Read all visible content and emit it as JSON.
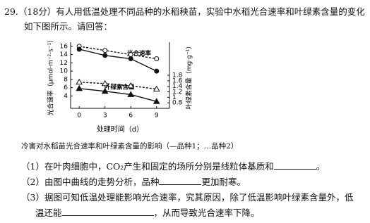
{
  "question": {
    "stem": [
      "29.（18分）有人用低温处理不同品种的水稻秧苗，实验中水稻光合速率和叶绿素含量的变化",
      "如下图所示。请回答："
    ],
    "chart_data": {
      "type": "line",
      "y_label": "光合速率（μmol·m⁻²·s⁻¹）",
      "y2_label": "叶绿素含量（mg·g⁻¹）",
      "x_label": "处理时间（d）",
      "x": [
        0,
        3,
        6,
        9
      ],
      "xlim": [
        -1,
        10.5
      ],
      "xticks": [
        0,
        3,
        6,
        9
      ],
      "ylim": [
        1,
        17
      ],
      "yticks": [
        4,
        6,
        8,
        10,
        12,
        14,
        16
      ],
      "y2lim": [
        0.6,
        3.0
      ],
      "y2ticks": [
        0.8,
        1.0,
        1.2,
        1.4,
        1.6,
        1.8
      ],
      "annotations": [
        "光合速率",
        "叶绿素含量"
      ],
      "series": [
        {
          "color": "#111",
          "marker": "circle",
          "filled": false,
          "dashed": true,
          "values": [
            16,
            15,
            14,
            13
          ]
        },
        {
          "color": "#111",
          "marker": "circle",
          "filled": true,
          "dashed": false,
          "values": [
            15.3,
            13.8,
            13,
            10
          ]
        },
        {
          "axis": "y2",
          "color": "#111",
          "marker": "triangle",
          "filled": false,
          "dashed": true,
          "values": [
            1.55,
            1.5,
            1.42,
            1.3
          ]
        },
        {
          "axis": "y2",
          "color": "#111",
          "marker": "triangle",
          "filled": true,
          "dashed": false,
          "values": [
            1.32,
            1.22,
            1.1,
            0.85
          ]
        }
      ]
    },
    "caption": "冷害对水稻苗光合速率和叶绿素含量的影响（—品种1；…品种2）",
    "items": [
      {
        "label": "（1）",
        "lines": [
          "在叶肉细胞中，CO₂产生和固定的场所分别是线粒体基质和"
        ],
        "after": "。"
      },
      {
        "label": "（2）",
        "lines": [
          "由图中曲线的走势分析，品种"
        ],
        "after": "更加耐寒。"
      },
      {
        "label": "（3）",
        "lines": [
          "据图可知低温处理能影响光合速率，究其原因，除了低温影响叶绿素含量外，低",
          "温还能"
        ],
        "after": "，从而导致光合速率下降。"
      }
    ]
  }
}
